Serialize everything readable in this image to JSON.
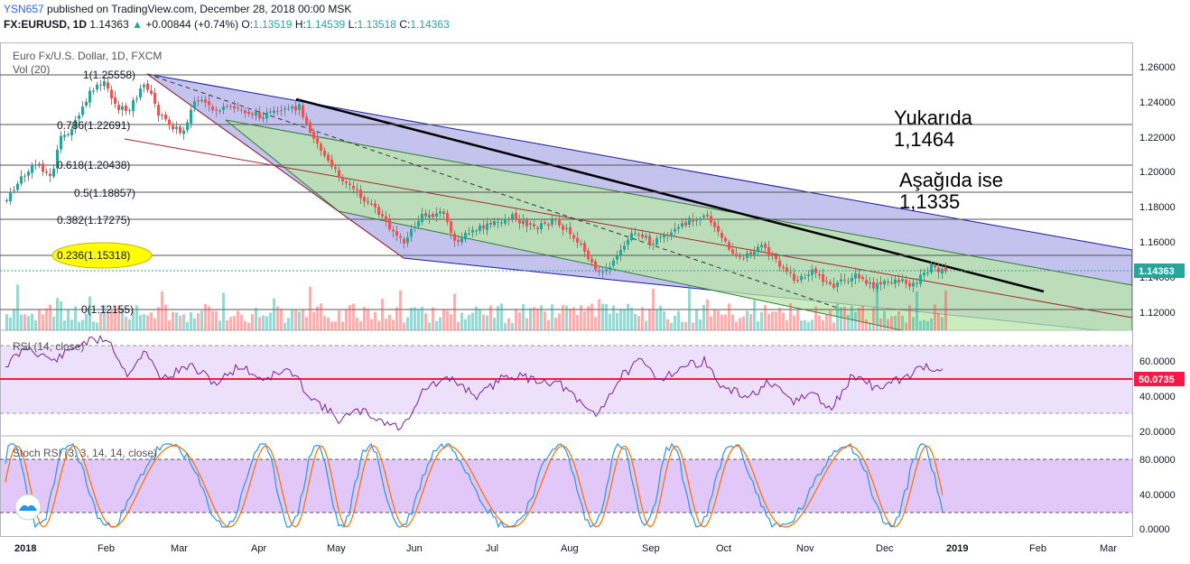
{
  "header": {
    "username": "YSN657",
    "published": "published on TradingView.com, December 28, 2018 00:00 MSK",
    "symbol": "FX:EURUSD, 1D",
    "last": "1.14363",
    "arrow": "▲",
    "change": "+0.00844 (+0.74%)",
    "o_label": "O:",
    "o": "1.13519",
    "h_label": "H:",
    "h": "1.14539",
    "l_label": "L:",
    "l": "1.13518",
    "c_label": "C:",
    "c": "1.14363"
  },
  "pane_main": {
    "title": "Euro Fx/U.S. Dollar, 1D, FXCM",
    "vol_label": "Vol (20)",
    "price_axis": [
      "1.26000",
      "1.24000",
      "1.22000",
      "1.20000",
      "1.18000",
      "1.16000",
      "1.14000",
      "1.12000"
    ],
    "last_price_tag": "1.14363",
    "fib_levels": [
      {
        "label": "1(1.25558)"
      },
      {
        "label": "0.786(1.22691)"
      },
      {
        "label": "0.618(1.20438)"
      },
      {
        "label": "0.5(1.18857)"
      },
      {
        "label": "0.382(1.17275)"
      },
      {
        "label": "0.236(1.15318)"
      },
      {
        "label": "0(1.12155)"
      }
    ],
    "note_above_1": "Yukarıda",
    "note_above_2": "1,1464",
    "note_below_1": "Aşağıda ise",
    "note_below_2": "1,1335"
  },
  "pane_rsi": {
    "title": "RSI (14, close)",
    "axis": [
      "60.0000",
      "40.0000",
      "20.0000"
    ],
    "value_tag": "50.0735"
  },
  "pane_stoch": {
    "title": "Stoch RSI (3, 3, 14, 14, close)",
    "axis": [
      "80.0000",
      "40.0000",
      "0.0000"
    ]
  },
  "time_axis": [
    "2018",
    "Feb",
    "Mar",
    "Apr",
    "May",
    "Jun",
    "Jul",
    "Aug",
    "Sep",
    "Oct",
    "Nov",
    "Dec",
    "2019",
    "Feb",
    "Mar"
  ],
  "colors": {
    "bull": "#26a69a",
    "bear": "#ef5350",
    "rsi": "#7b1fa2",
    "stoch_k": "#2196f3",
    "stoch_d": "#ff6d00",
    "channel_blue": "#9c9ce0",
    "channel_green": "#b9e6b0",
    "fib_highlight": "#ffff00"
  }
}
